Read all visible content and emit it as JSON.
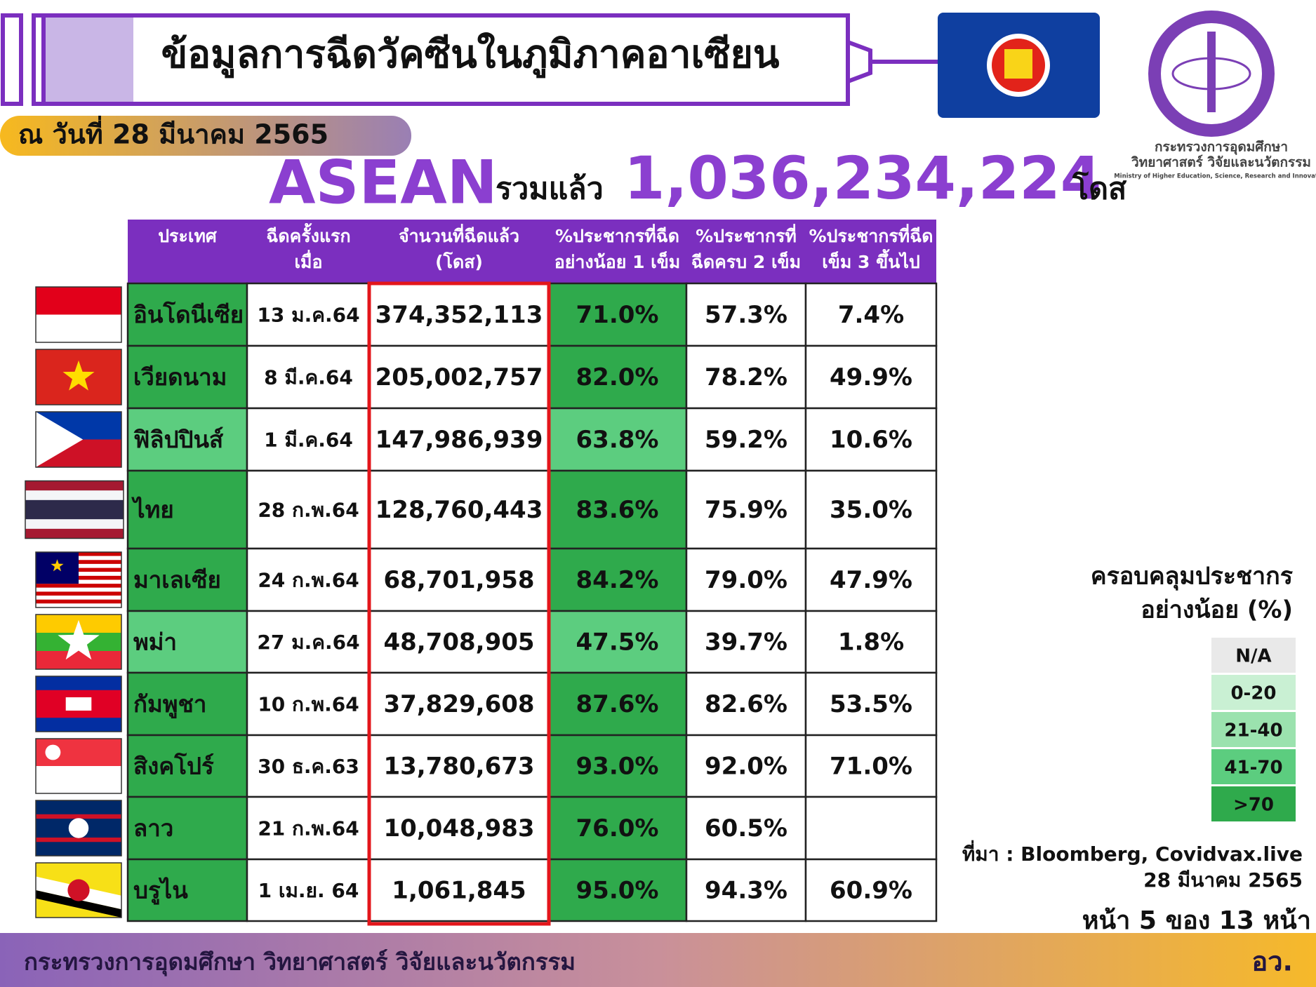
{
  "header": {
    "title": "ข้อมูลการฉีดวัคซีนในภูมิภาคอาเซียน",
    "date": "ณ วันที่ 28 มีนาคม 2565"
  },
  "summary": {
    "region": "ASEAN",
    "label": "รวมแล้ว",
    "total": "1,036,234,224",
    "unit": "โดส"
  },
  "logo": {
    "line1": "กระทรวงการอุดมศึกษา",
    "line2": "วิทยาศาสตร์ วิจัยและนวัตกรรม",
    "line3": "Ministry of Higher Education, Science, Research and Innovation"
  },
  "table": {
    "columns": [
      [
        "ประเทศ"
      ],
      [
        "ฉีดครั้งแรก",
        "เมื่อ"
      ],
      [
        "จำนวนที่ฉีดแล้ว",
        "(โดส)"
      ],
      [
        "%ประชากรที่ฉีด",
        "อย่างน้อย 1 เข็ม"
      ],
      [
        "%ประชากรที่",
        "ฉีดครบ 2 เข็ม"
      ],
      [
        "%ประชากรที่ฉีด",
        "เข็ม 3 ขึ้นไป"
      ]
    ],
    "rows": [
      [
        "อินโดนีเซีย",
        "13 ม.ค.64",
        "374,352,113",
        "71.0%",
        "57.3%",
        "7.4%"
      ],
      [
        "เวียดนาม",
        "8 มี.ค.64",
        "205,002,757",
        "82.0%",
        "78.2%",
        "49.9%"
      ],
      [
        "ฟิลิปปินส์",
        "1 มี.ค.64",
        "147,986,939",
        "63.8%",
        "59.2%",
        "10.6%"
      ],
      [
        "ไทย",
        "28 ก.พ.64",
        "128,760,443",
        "83.6%",
        "75.9%",
        "35.0%"
      ],
      [
        "มาเลเซีย",
        "24 ก.พ.64",
        "68,701,958",
        "84.2%",
        "79.0%",
        "47.9%"
      ],
      [
        "พม่า",
        "27 ม.ค.64",
        "48,708,905",
        "47.5%",
        "39.7%",
        "1.8%"
      ],
      [
        "กัมพูชา",
        "10 ก.พ.64",
        "37,829,608",
        "87.6%",
        "82.6%",
        "53.5%"
      ],
      [
        "สิงคโปร์",
        "30 ธ.ค.63",
        "13,780,673",
        "93.0%",
        "92.0%",
        "71.0%"
      ],
      [
        "ลาว",
        "21 ก.พ.64",
        "10,048,983",
        "76.0%",
        "60.5%",
        null
      ],
      [
        "บรูไน",
        "1 เม.ย. 64",
        "1,061,845",
        "95.0%",
        "94.3%",
        "60.9%"
      ]
    ],
    "row_colors": [
      "#2faa4c",
      "#2faa4c",
      "#5ccd7f",
      "#2faa4c",
      "#2faa4c",
      "#5ccd7f",
      "#2faa4c",
      "#2faa4c",
      "#2faa4c",
      "#2faa4c"
    ],
    "header_color": "#7b2fbf",
    "highlight_color": "#e3161b"
  },
  "legend": {
    "title": [
      "ครอบคลุมประชากร",
      "อย่างน้อย (%)"
    ],
    "items": [
      {
        "label": "N/A",
        "color": "#e9e9e9"
      },
      {
        "label": "0-20",
        "color": "#c9f0d3"
      },
      {
        "label": "21-40",
        "color": "#9be2ae"
      },
      {
        "label": "41-70",
        "color": "#5ccd7f"
      },
      {
        "label": ">70",
        "color": "#2faa4c"
      }
    ]
  },
  "source": [
    "ที่มา : Bloomberg, Covidvax.live",
    "28 มีนาคม 2565"
  ],
  "page": "หน้า 5 ของ 13 หน้า",
  "footer": {
    "left": "กระทรวงการอุดมศึกษา วิทยาศาสตร์ วิจัยและนวัตกรรม",
    "right": "อว."
  }
}
